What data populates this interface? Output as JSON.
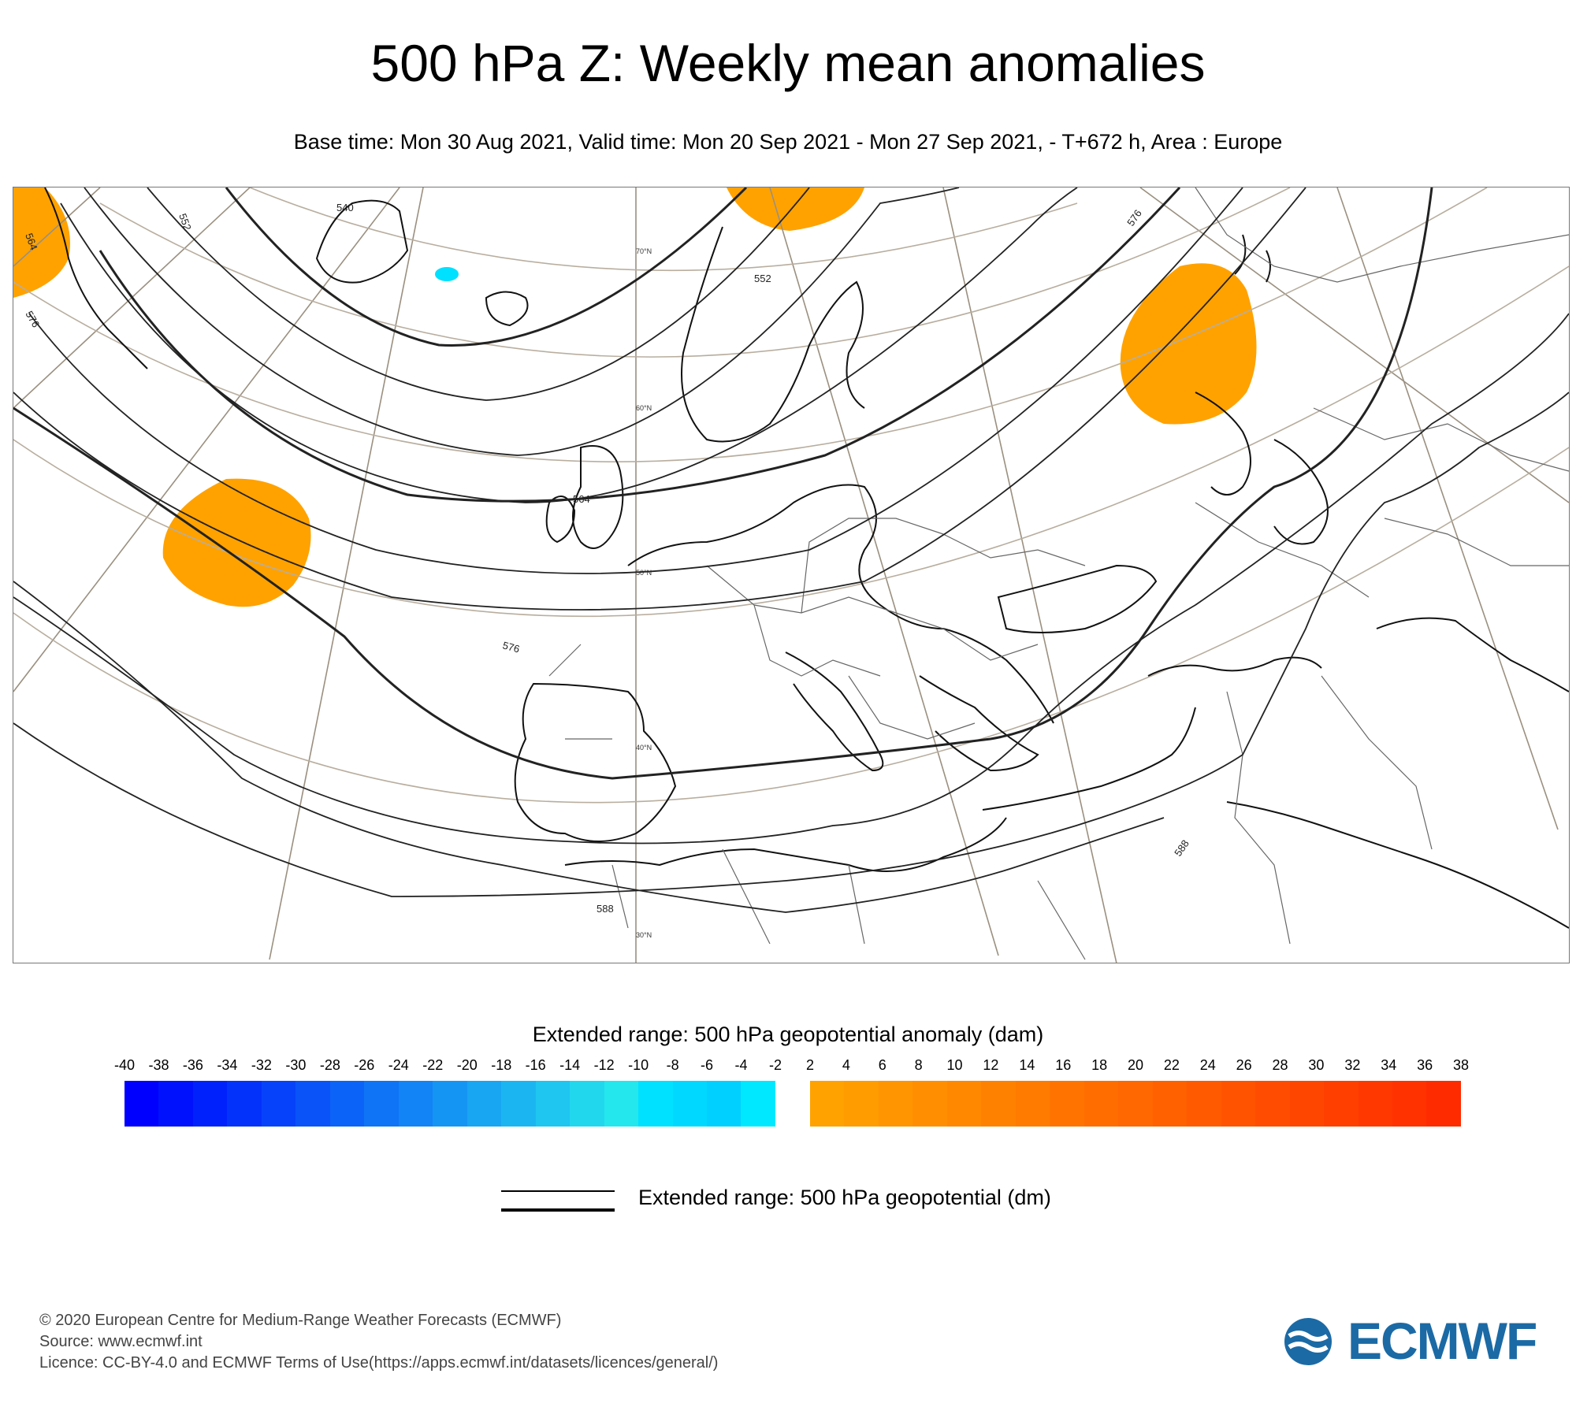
{
  "title": "500 hPa Z: Weekly mean anomalies",
  "subtitle": "Base time: Mon 30 Aug 2021, Valid time: Mon 20 Sep 2021 - Mon 27 Sep 2021, - T+672 h, Area : Europe",
  "map": {
    "area": "Europe",
    "latitude_labels": [
      "70°N",
      "60°N",
      "50°N",
      "40°N",
      "30°N"
    ],
    "contour_labels": [
      "564",
      "552",
      "540",
      "576",
      "552",
      "564",
      "576",
      "588",
      "588",
      "576"
    ],
    "anomaly_patches": [
      {
        "sign": "positive",
        "color": "#ffa200"
      },
      {
        "sign": "positive",
        "color": "#ffa200"
      },
      {
        "sign": "positive",
        "color": "#ffa200"
      },
      {
        "sign": "positive",
        "color": "#ffa200"
      },
      {
        "sign": "negative",
        "color": "#00e0ff"
      }
    ]
  },
  "colorbar": {
    "title": "Extended range: 500 hPa geopotential anomaly (dam)",
    "labels": [
      "-40",
      "-38",
      "-36",
      "-34",
      "-32",
      "-30",
      "-28",
      "-26",
      "-24",
      "-22",
      "-20",
      "-18",
      "-16",
      "-14",
      "-12",
      "-10",
      "-8",
      "-6",
      "-4",
      "-2",
      "2",
      "4",
      "6",
      "8",
      "10",
      "12",
      "14",
      "16",
      "18",
      "20",
      "22",
      "24",
      "26",
      "28",
      "30",
      "32",
      "34",
      "36",
      "38"
    ],
    "negative_colors": [
      "#0000ff",
      "#0011fd",
      "#0021fc",
      "#0332fb",
      "#0642fa",
      "#0953f8",
      "#0c63f7",
      "#0f74f6",
      "#1284f5",
      "#1595f3",
      "#18a5f2",
      "#1bb6f1",
      "#1ec6f0",
      "#21d7ee",
      "#24e7ed",
      "#00e0ff",
      "#00d8ff",
      "#00d0ff",
      "#00e8ff"
    ],
    "positive_colors": [
      "#ffa200",
      "#ff9c00",
      "#ff9500",
      "#ff8f00",
      "#ff8800",
      "#ff8100",
      "#ff7b00",
      "#ff7400",
      "#ff6d00",
      "#ff6700",
      "#ff6000",
      "#ff5a00",
      "#ff5300",
      "#ff4c00",
      "#ff4600",
      "#ff3f00",
      "#ff3800",
      "#ff3200",
      "#ff2b00"
    ]
  },
  "line_legend": {
    "text": "Extended range: 500 hPa geopotential (dm)"
  },
  "footer": {
    "line1": "© 2020 European Centre for Medium-Range Weather Forecasts (ECMWF)",
    "line2": "Source: www.ecmwf.int",
    "line3": "Licence: CC-BY-4.0 and ECMWF Terms of Use(https://apps.ecmwf.int/datasets/licences/general/)"
  },
  "logo": {
    "text": "ECMWF",
    "color": "#1b6aa5"
  }
}
